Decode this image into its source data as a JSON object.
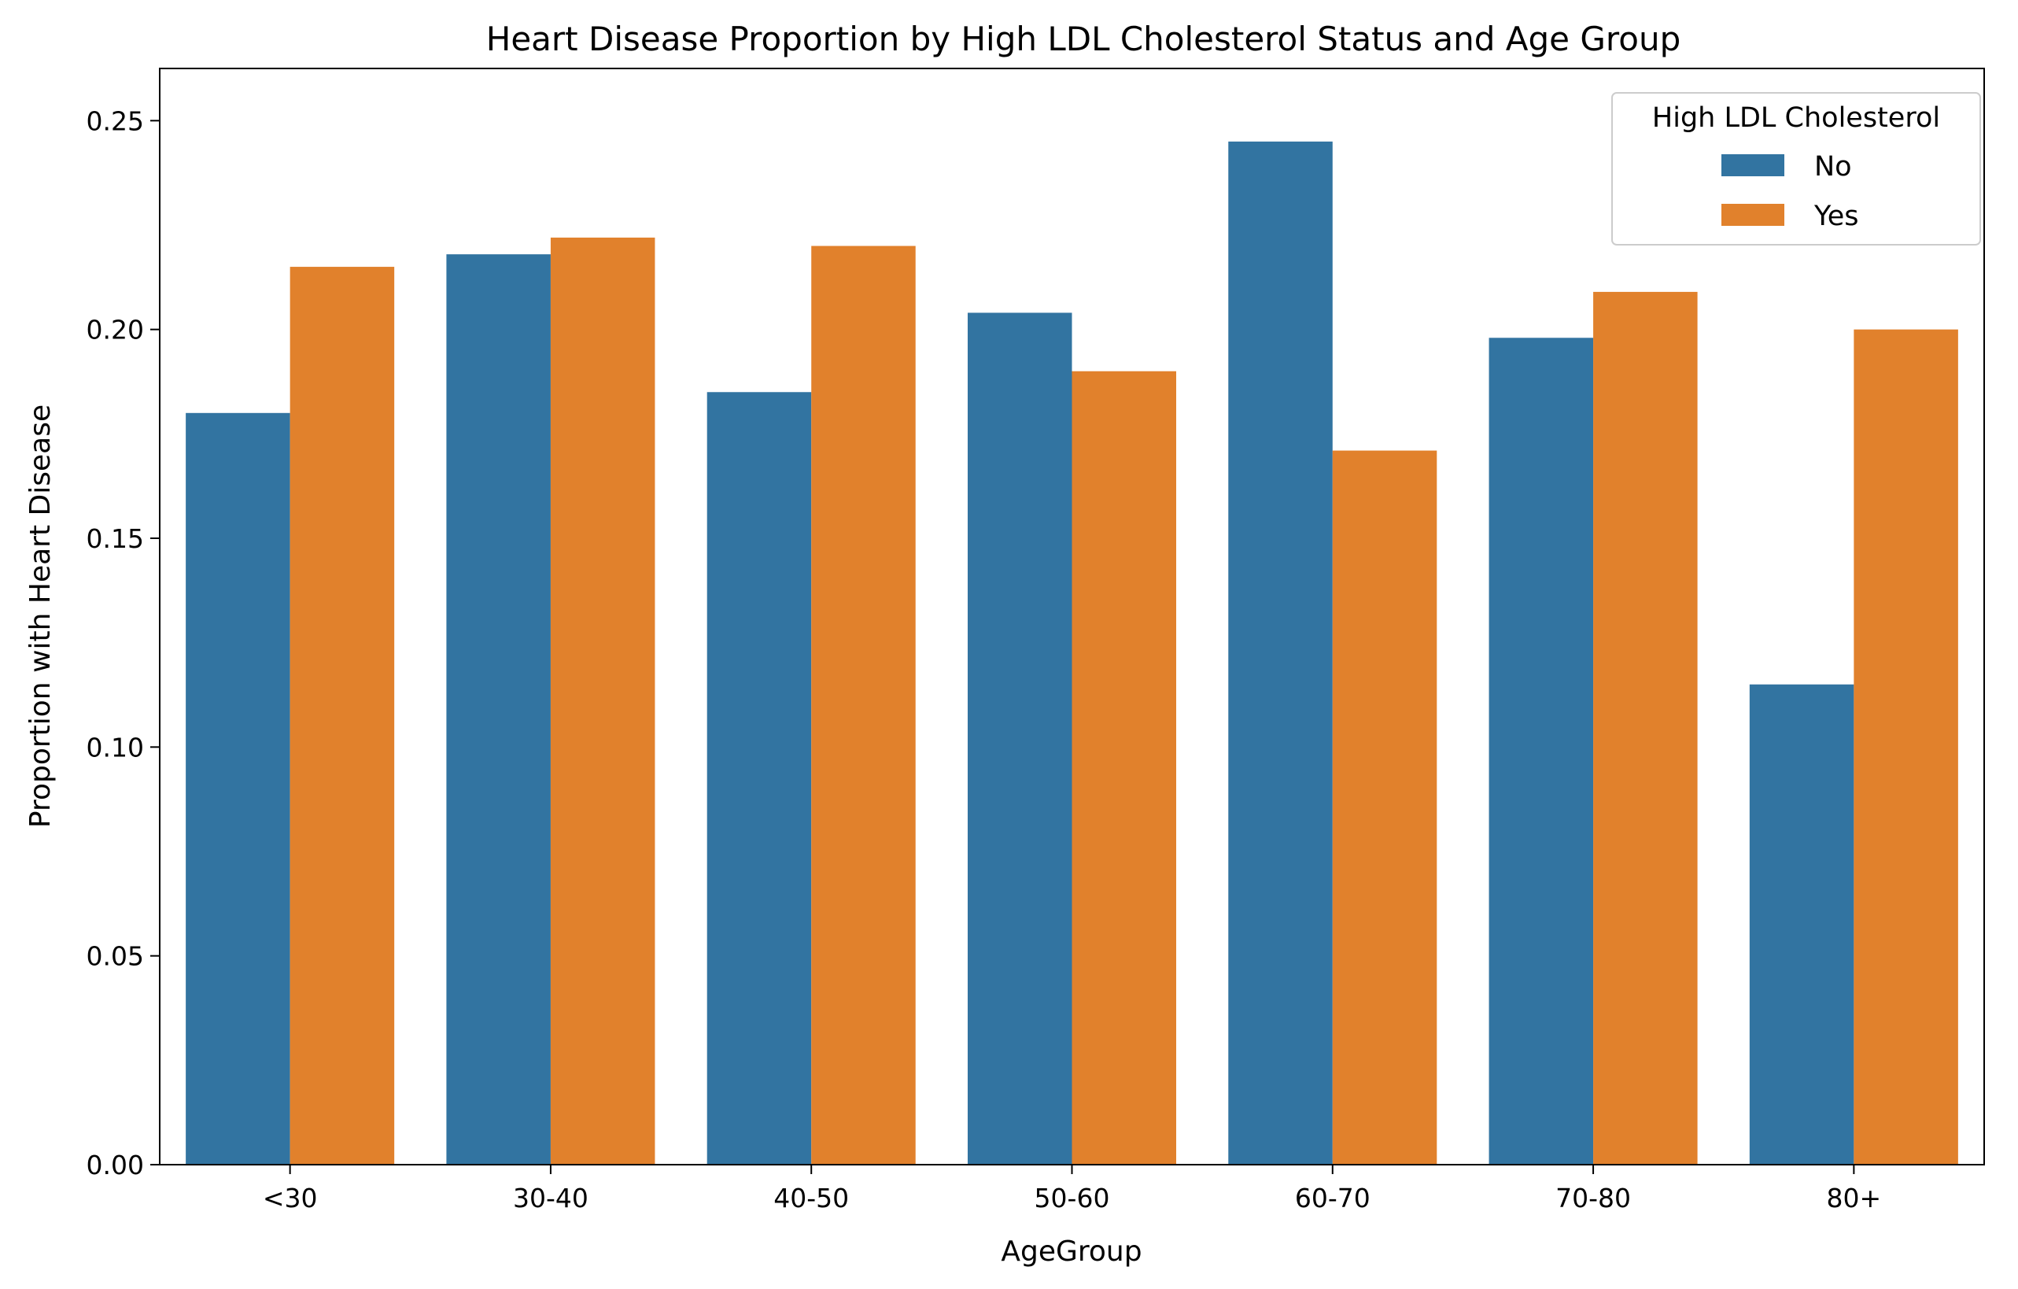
{
  "chart_data": {
    "type": "bar",
    "title": "Heart Disease Proportion by High LDL Cholesterol Status and Age Group",
    "xlabel": "AgeGroup",
    "ylabel": "Proportion with Heart Disease",
    "categories": [
      "<30",
      "30-40",
      "40-50",
      "50-60",
      "60-70",
      "70-80",
      "80+"
    ],
    "series": [
      {
        "name": "No",
        "color": "#3274a1",
        "values": [
          0.18,
          0.218,
          0.185,
          0.204,
          0.245,
          0.198,
          0.115
        ]
      },
      {
        "name": "Yes",
        "color": "#e1812c",
        "values": [
          0.215,
          0.222,
          0.22,
          0.19,
          0.171,
          0.209,
          0.2
        ]
      }
    ],
    "ylim": [
      0,
      0.2625
    ],
    "yticks": [
      "0.00",
      "0.05",
      "0.10",
      "0.15",
      "0.20",
      "0.25"
    ],
    "ytick_values": [
      0,
      0.05,
      0.1,
      0.15,
      0.2,
      0.25
    ],
    "legend": {
      "title": "High LDL Cholesterol",
      "placement": "top-right"
    },
    "grid": false
  }
}
